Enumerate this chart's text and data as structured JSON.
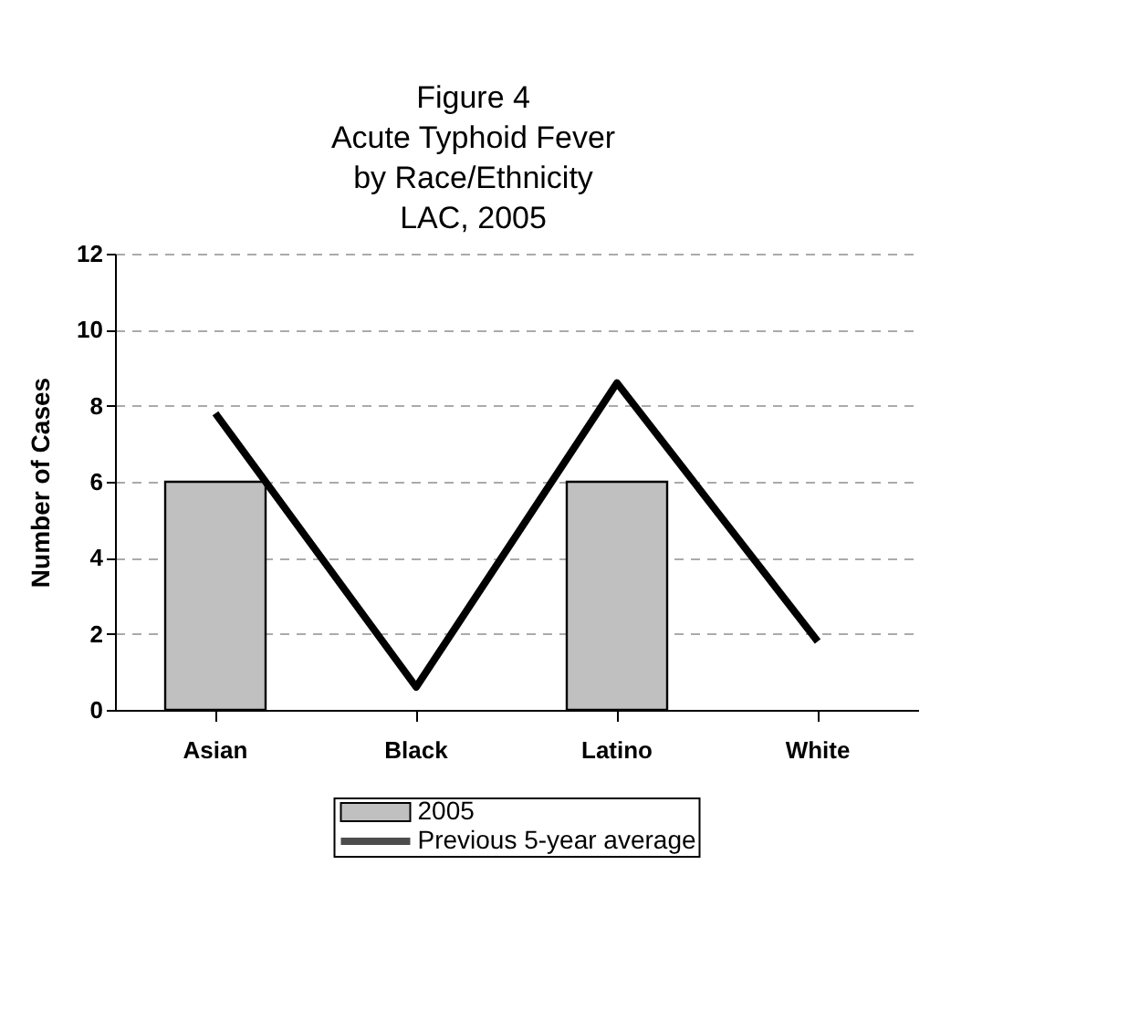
{
  "chart_data": {
    "type": "bar",
    "title": "Figure 4\nAcute Typhoid Fever\nby Race/Ethnicity\nLAC, 2005",
    "ylabel": "Number of Cases",
    "categories": [
      "Asian",
      "Black",
      "Latino",
      "White"
    ],
    "series": [
      {
        "name": "2005",
        "color": "#c0c0c0",
        "values": [
          6,
          0,
          6,
          0
        ]
      },
      {
        "name": "Previous 5-year average",
        "type": "line",
        "color": "#000000",
        "values": [
          7.8,
          0.6,
          8.6,
          1.8
        ]
      }
    ],
    "ylim": [
      0,
      12
    ],
    "yticks": [
      0,
      2,
      4,
      6,
      8,
      10,
      12
    ],
    "grid": "y",
    "legend": "bottom",
    "marker": "none",
    "line_style": "solid"
  }
}
